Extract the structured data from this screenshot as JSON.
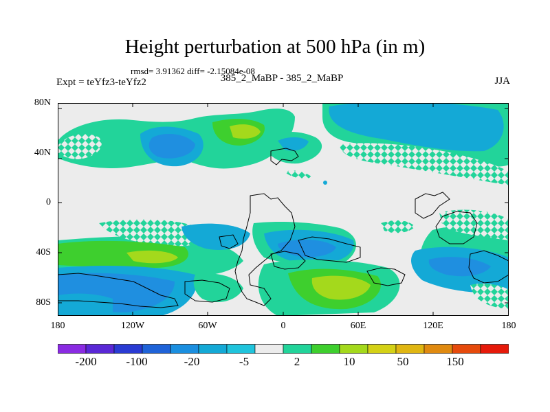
{
  "title": "Height perturbation at 500 hPa (in m)",
  "stats": "rmsd= 3.91362 diff= -2.15084e-08",
  "expt": "Expt = teYfz3-teYfz2",
  "center_label": "385_2_MaBP - 385_2_MaBP",
  "season": "JJA",
  "lat_labels": [
    "80N",
    "40N",
    "0",
    "40S",
    "80S"
  ],
  "lon_labels": [
    "180",
    "120W",
    "60W",
    "0",
    "60E",
    "120E",
    "180"
  ],
  "colorbar": {
    "labels": [
      "-200",
      "-100",
      "-20",
      "-5",
      "2",
      "10",
      "50",
      "150"
    ],
    "colors": [
      "#8a2be2",
      "#5a28d6",
      "#2a3bd3",
      "#1f63d8",
      "#1b8fe0",
      "#14a9d6",
      "#20c4dc",
      "#ececec",
      "#22d49a",
      "#3ecf2e",
      "#a4d91c",
      "#d4d116",
      "#e0b612",
      "#e08a10",
      "#e64a0c",
      "#e61a0a"
    ]
  },
  "map_colors": {
    "background": "#ececec",
    "light": "#22d49a",
    "mid": "#14a9d6",
    "deep": "#1f8fe0",
    "green": "#3ecf2e",
    "yellow": "#a4d91c",
    "coast": "#000000"
  }
}
